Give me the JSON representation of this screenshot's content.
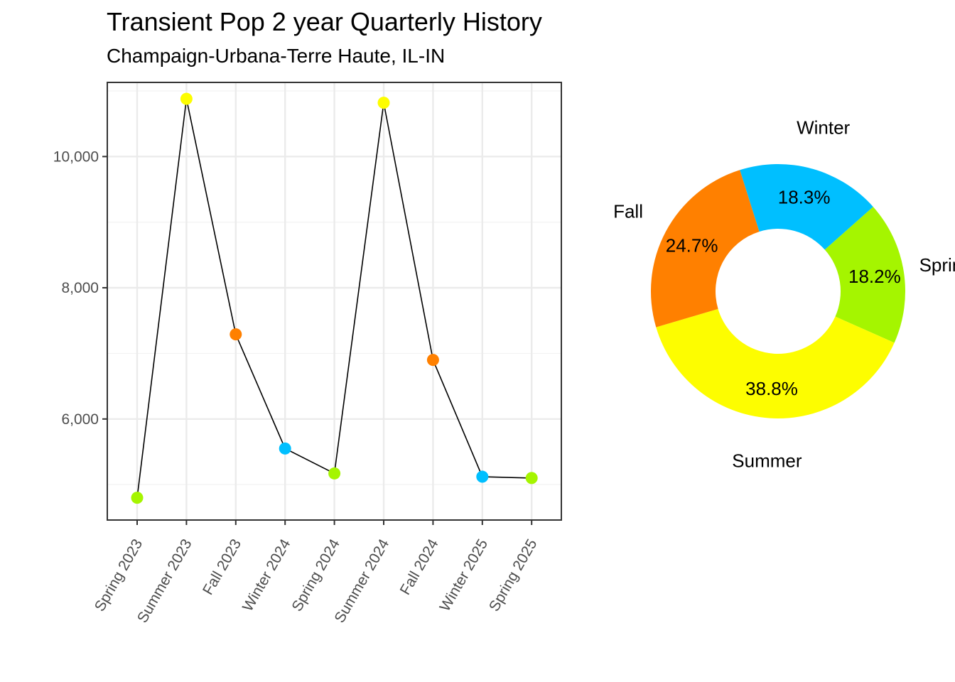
{
  "title": "Transient Pop 2 year Quarterly History",
  "subtitle": "Champaign-Urbana-Terre Haute, IL-IN",
  "chart_data": [
    {
      "type": "line",
      "categories": [
        "Spring 2023",
        "Summer 2023",
        "Fall 2023",
        "Winter 2024",
        "Spring 2024",
        "Summer 2024",
        "Fall 2024",
        "Winter 2025",
        "Spring 2025"
      ],
      "values": [
        4800,
        10880,
        7290,
        5550,
        5170,
        10820,
        6900,
        5120,
        5100
      ],
      "point_colors": [
        "#a5f500",
        "#fdfd00",
        "#ff8000",
        "#00bfff",
        "#a5f500",
        "#fdfd00",
        "#ff8000",
        "#00bfff",
        "#a5f500"
      ],
      "y_ticks": [
        6000,
        8000,
        10000
      ],
      "y_tick_labels": [
        "6,000",
        "8,000",
        "10,000"
      ],
      "ylim": [
        4460,
        11130
      ],
      "grid": true,
      "line_color": "#000000"
    },
    {
      "type": "pie",
      "style": "donut",
      "slices": [
        {
          "label": "Winter",
          "value": 18.3,
          "value_label": "18.3%",
          "color": "#00bfff"
        },
        {
          "label": "Spring",
          "value": 18.2,
          "value_label": "18.2%",
          "color": "#a5f500"
        },
        {
          "label": "Summer",
          "value": 38.8,
          "value_label": "38.8%",
          "color": "#fdfd00"
        },
        {
          "label": "Fall",
          "value": 24.7,
          "value_label": "24.7%",
          "color": "#ff8000"
        }
      ]
    }
  ]
}
